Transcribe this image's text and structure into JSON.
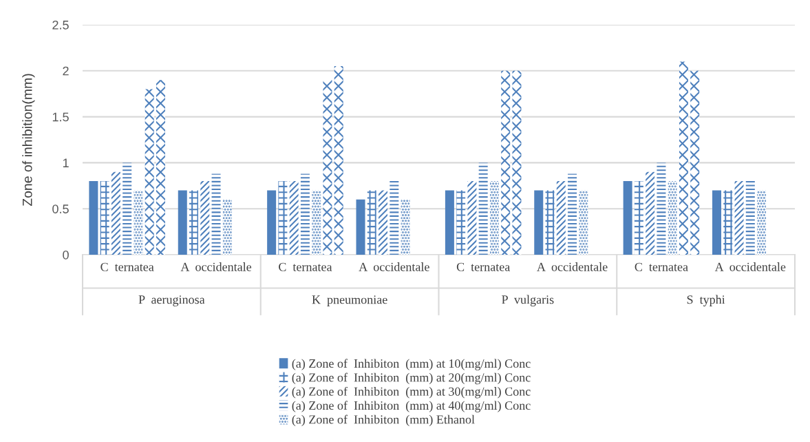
{
  "chart_data": {
    "type": "bar",
    "ylabel": "Zone of inhibition(mm)",
    "categories": [
      "C  ternatea",
      "A  occidentale",
      "C  ternatea",
      "A  occidentale",
      "C  ternatea",
      "A  occidentale",
      "C  ternatea",
      "A  occidentale"
    ],
    "annotations": [
      "P  aeruginosa",
      "K  pneumoniae",
      "P  vulgaris",
      "S  typhi"
    ],
    "series": [
      {
        "name": "(a) Zone of  Inhibiton  (mm) at 10(mg/ml) Conc",
        "color": "#4f81bd",
        "values": [
          0.8,
          0.7,
          0.7,
          0.6,
          0.7,
          0.7,
          0.8,
          0.7
        ]
      },
      {
        "name": "(a) Zone of  Inhibiton  (mm) at 20(mg/ml) Conc",
        "color": "#4f81bd",
        "values": [
          0.8,
          0.7,
          0.8,
          0.7,
          0.7,
          0.7,
          0.8,
          0.7
        ]
      },
      {
        "name": "(a) Zone of  Inhibiton  (mm) at 30(mg/ml) Conc",
        "color": "#4f81bd",
        "values": [
          0.9,
          0.8,
          0.8,
          0.7,
          0.8,
          0.8,
          0.9,
          0.8
        ]
      },
      {
        "name": "(a) Zone of  Inhibiton  (mm) at 40(mg/ml) Conc",
        "color": "#4f81bd",
        "values": [
          1.0,
          0.88,
          0.88,
          0.8,
          1.0,
          0.88,
          1.0,
          0.8
        ]
      },
      {
        "name": "(a) Zone of  Inhibiton  (mm) Ethanol",
        "color": "#4f81bd",
        "values": [
          0.7,
          0.6,
          0.7,
          0.6,
          0.8,
          0.7,
          0.8,
          0.7
        ]
      },
      {
        "color": "#4f81bd",
        "values": [
          1.8,
          null,
          1.9,
          null,
          2.0,
          null,
          2.1,
          null
        ]
      },
      {
        "color": "#4f81bd",
        "values": [
          1.9,
          null,
          2.05,
          null,
          2.0,
          null,
          2.0,
          null
        ]
      }
    ],
    "ylim": [
      0,
      2.5
    ],
    "yticks": [
      0,
      0.5,
      1,
      1.5,
      2,
      2.5
    ],
    "grid": "y",
    "legend": "bottom"
  }
}
